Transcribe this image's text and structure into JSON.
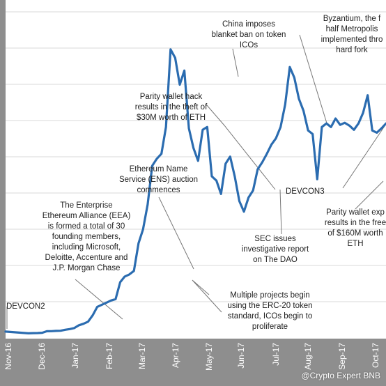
{
  "chart_data": {
    "type": "line",
    "title": "",
    "xlabel": "",
    "ylabel": "",
    "grid": true,
    "x_tick_labels": [
      "Nov-16",
      "Dec-16",
      "Jan-17",
      "Feb-17",
      "Mar-17",
      "Apr-17",
      "May-17",
      "Jun-17",
      "Jul-17",
      "Aug-17",
      "Sep-17",
      "Oct-17"
    ],
    "series": [
      {
        "values": [
          10.0,
          9.5,
          9.0,
          8.5,
          8.0,
          7.5,
          7.8,
          7.9,
          8.3,
          10.5,
          10.6,
          11.0,
          11.2,
          12.5,
          13.5,
          15.0,
          19.0,
          21.0,
          24.0,
          33.0,
          45.0,
          48.0,
          51.0,
          54.0,
          56.0,
          80.0,
          88.0,
          91.0,
          96.0,
          135.0,
          155.0,
          190.0,
          245.0,
          255.0,
          262.0,
          300.0,
          410.0,
          398.0,
          360.0,
          380.0,
          298.0,
          270.0,
          252.0,
          296.0,
          300.0,
          230.0,
          224.0,
          205.0,
          248.0,
          258.0,
          230.0,
          195.0,
          180.0,
          200.0,
          210.0,
          240.0,
          250.0,
          262.0,
          275.0,
          284.0,
          300.0,
          332.0,
          385.0,
          370.0,
          340.0,
          323.0,
          295.0,
          290.0,
          226.0,
          300.0,
          305.0,
          300.0,
          312.0,
          303.0,
          306.0,
          302.0,
          296.0,
          305.0,
          320.0,
          345.0,
          295.0,
          292.0,
          298.0,
          305.0
        ]
      }
    ],
    "annotations": [
      {
        "text": "DEVCON2"
      },
      {
        "text": "The Enterprise\nEthereum Alliance (EEA)\nis formed a total of 30\nfounding members,\nincluding Microsoft,\nDeloitte, Accenture and\nJ.P. Morgan Chase"
      },
      {
        "text": "Ethereum Name\nService (ENS) auction\ncommences"
      },
      {
        "text": "Multiple projects begin\nusing the ERC-20 token\nstandard, ICOs begin to\nproliferate"
      },
      {
        "text": "Parity wallet hack\nresults in the theft of\n$30M worth of ETH"
      },
      {
        "text": "China imposes\nblanket ban on token\nICOs"
      },
      {
        "text": "SEC issues\ninvestigative report\non The DAO"
      },
      {
        "text": "Byzantium, the f\nhalf Metropolis\nimplemented thro\nhard fork"
      },
      {
        "text": "DEVCON3"
      },
      {
        "text": "Parity wallet exp\nresults in the free\nof $160M worth\nETH"
      }
    ]
  },
  "watermark": "@Crypto Expert BNB",
  "colors": {
    "line": "#2b6cb0",
    "axis_band": "#8e8e8e",
    "grid": "#d8d8d8",
    "leader": "#777777"
  }
}
